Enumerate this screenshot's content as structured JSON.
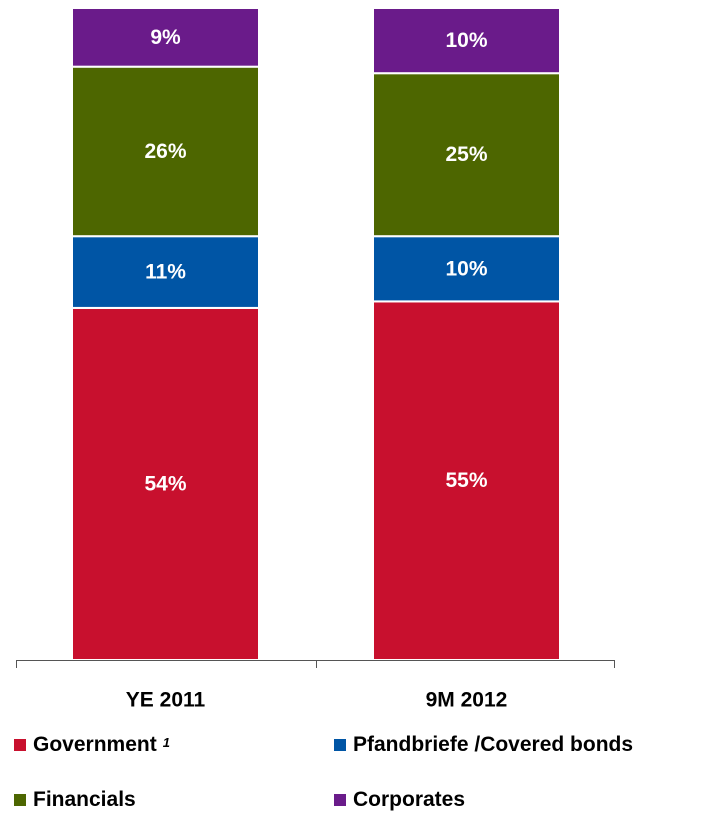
{
  "chart_data": {
    "type": "bar",
    "stacked": true,
    "unit": "%",
    "categories": [
      "YE 2011",
      "9M 2012"
    ],
    "series": [
      {
        "name": "Government",
        "color": "#c8102e",
        "values": [
          54,
          55
        ],
        "labels": [
          "54%",
          "55%"
        ]
      },
      {
        "name": "Pfandbriefe /Covered bonds",
        "color": "#0055a5",
        "values": [
          11,
          10
        ],
        "labels": [
          "11%",
          "10%"
        ]
      },
      {
        "name": "Financials",
        "color": "#4d6600",
        "values": [
          26,
          25
        ],
        "labels": [
          "26%",
          "25%"
        ]
      },
      {
        "name": "Corporates",
        "color": "#6a1b8a",
        "values": [
          9,
          10
        ],
        "labels": [
          "9%",
          "10%"
        ]
      }
    ],
    "ylim": [
      0,
      100
    ],
    "grid": false,
    "legend_position": "bottom",
    "legend": {
      "government": {
        "label": "Government",
        "footnote": "1"
      },
      "covered": {
        "label": "Pfandbriefe /Covered bonds"
      },
      "financials": {
        "label": "Financials"
      },
      "corporates": {
        "label": "Corporates"
      }
    }
  }
}
